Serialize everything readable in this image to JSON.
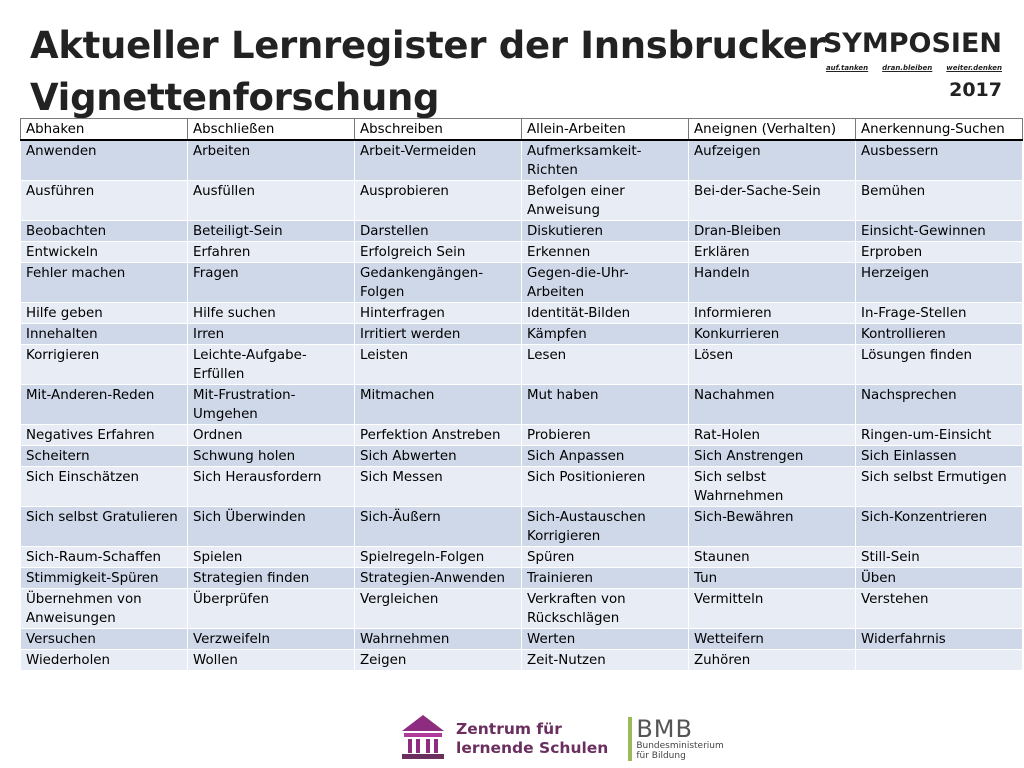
{
  "title": {
    "line1": "Aktueller Lernregister der Innsbrucker",
    "line2": "Vignettenforschung"
  },
  "brand": {
    "name": "SYMPOSIEN",
    "tags": [
      "auf.tanken",
      "dran.bleiben",
      "weiter.denken"
    ],
    "year": "2017"
  },
  "table": {
    "rows": [
      [
        "Abhaken",
        "Abschließen",
        "Abschreiben",
        "Allein-Arbeiten",
        "Aneignen (Verhalten)",
        "Anerkennung-Suchen"
      ],
      [
        "Anwenden",
        "Arbeiten",
        "Arbeit-Vermeiden",
        "Aufmerksamkeit-Richten",
        "Aufzeigen",
        "Ausbessern"
      ],
      [
        "Ausführen",
        "Ausfüllen",
        "Ausprobieren",
        "Befolgen einer Anweisung",
        "Bei-der-Sache-Sein",
        "Bemühen"
      ],
      [
        "Beobachten",
        "Beteiligt-Sein",
        "Darstellen",
        "Diskutieren",
        "Dran-Bleiben",
        "Einsicht-Gewinnen"
      ],
      [
        "Entwickeln",
        "Erfahren",
        "Erfolgreich Sein",
        "Erkennen",
        "Erklären",
        "Erproben"
      ],
      [
        "Fehler machen",
        "Fragen",
        "Gedankengängen-Folgen",
        "Gegen-die-Uhr-Arbeiten",
        "Handeln",
        "Herzeigen"
      ],
      [
        "Hilfe geben",
        "Hilfe suchen",
        "Hinterfragen",
        "Identität-Bilden",
        "Informieren",
        "In-Frage-Stellen"
      ],
      [
        "Innehalten",
        "Irren",
        "Irritiert werden",
        "Kämpfen",
        "Konkurrieren",
        "Kontrollieren"
      ],
      [
        "Korrigieren",
        "Leichte-Aufgabe-Erfüllen",
        "Leisten",
        "Lesen",
        "Lösen",
        "Lösungen finden"
      ],
      [
        "Mit-Anderen-Reden",
        "Mit-Frustration-Umgehen",
        "Mitmachen",
        "Mut haben",
        "Nachahmen",
        "Nachsprechen"
      ],
      [
        "Negatives Erfahren",
        "Ordnen",
        "Perfektion Anstreben",
        "Probieren",
        "Rat-Holen",
        "Ringen-um-Einsicht"
      ],
      [
        "Scheitern",
        "Schwung holen",
        "Sich Abwerten",
        "Sich Anpassen",
        "Sich Anstrengen",
        "Sich Einlassen"
      ],
      [
        "Sich Einschätzen",
        "Sich Herausfordern",
        "Sich Messen",
        "Sich Positionieren",
        "Sich selbst Wahrnehmen",
        "Sich selbst Ermutigen"
      ],
      [
        "Sich selbst Gratulieren",
        "Sich Überwinden",
        "Sich-Äußern",
        "Sich-Austauschen Korrigieren",
        "Sich-Bewähren",
        "Sich-Konzentrieren"
      ],
      [
        "Sich-Raum-Schaffen",
        "Spielen",
        "Spielregeln-Folgen",
        "Spüren",
        "Staunen",
        "Still-Sein"
      ],
      [
        "Stimmigkeit-Spüren",
        "Strategien finden",
        "Strategien-Anwenden",
        "Trainieren",
        "Tun",
        "Üben"
      ],
      [
        "Übernehmen von Anweisungen",
        "Überprüfen",
        "Vergleichen",
        "Verkraften von Rückschlägen",
        "Vermitteln",
        "Verstehen"
      ],
      [
        "Versuchen",
        "Verzweifeln",
        "Wahrnehmen",
        "Werten",
        "Wetteifern",
        "Widerfahrnis"
      ],
      [
        "Wiederholen",
        "Wollen",
        "Zeigen",
        "Zeit-Nutzen",
        "Zuhören",
        ""
      ]
    ]
  },
  "footer": {
    "zfs_line1": "Zentrum für",
    "zfs_line2": "lernende Schulen",
    "bmb_mark": "BMB",
    "bmb_line1": "Bundesministerium",
    "bmb_line2": "für Bildung"
  },
  "colors": {
    "row_light": "#e8ecf4",
    "row_dark": "#cfd8e9",
    "zfs_purple": "#6b2f5f",
    "bmb_green": "#9bbb59"
  }
}
